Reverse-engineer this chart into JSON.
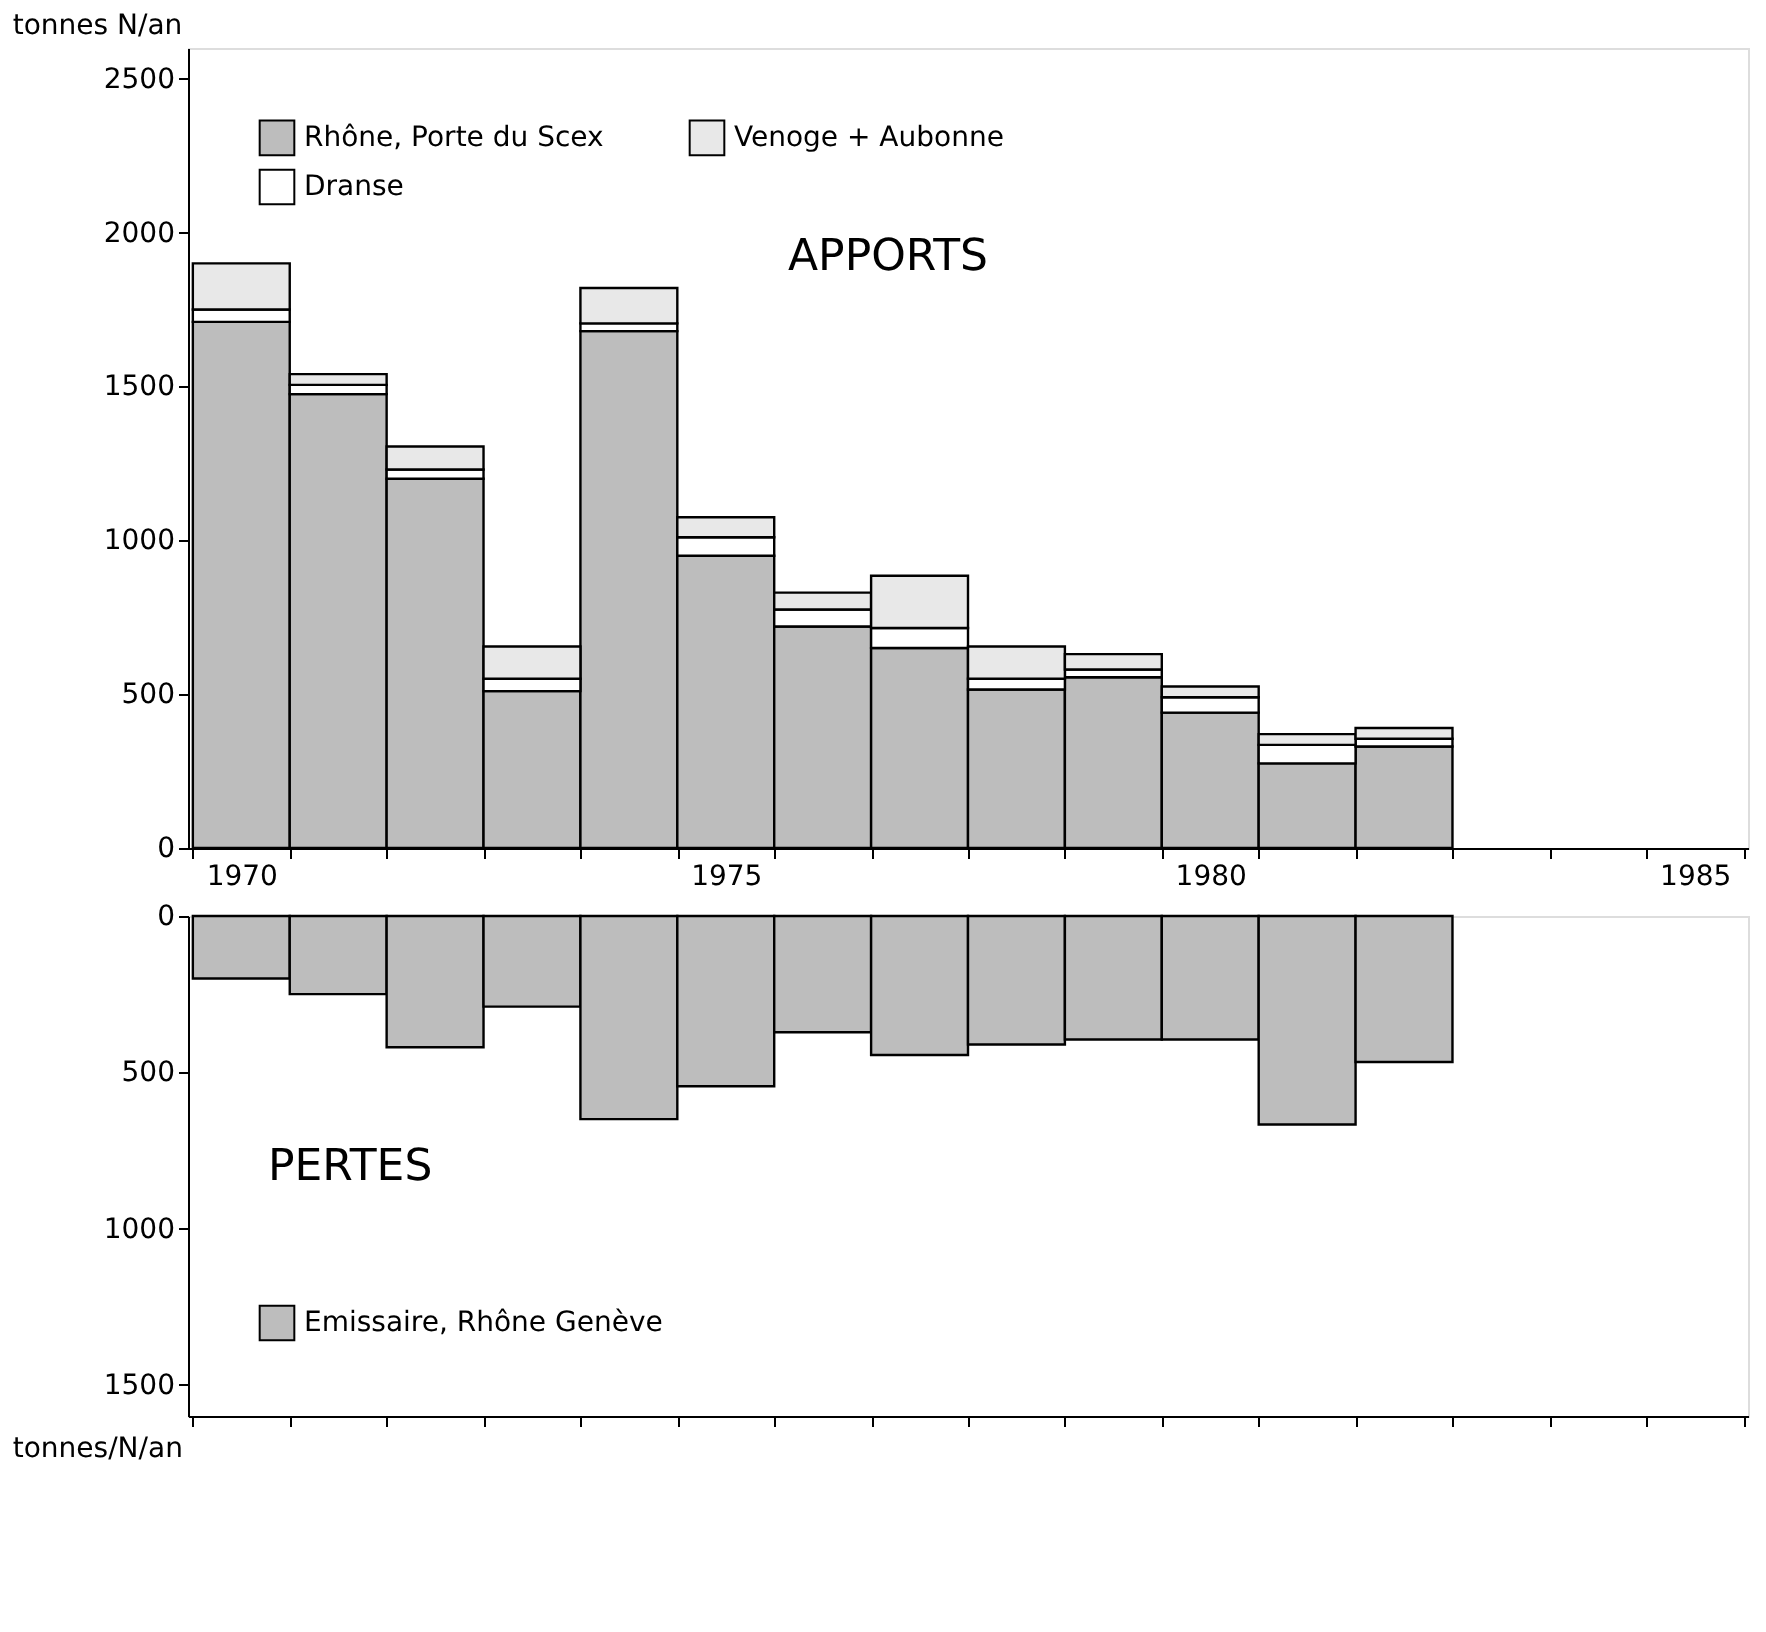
{
  "chart_data": [
    {
      "type": "bar",
      "stacked": true,
      "ylabel": "tonnes N/an",
      "categories": [
        "1970",
        null,
        null,
        null,
        null,
        "1975",
        null,
        null,
        null,
        null,
        "1980",
        null,
        null,
        null,
        null,
        "1985"
      ],
      "series": [
        {
          "name": "Rhône, Porte du Scex",
          "color": "#bdbdbd",
          "values": [
            1710,
            1475,
            1200,
            510,
            1680,
            950,
            720,
            650,
            515,
            555,
            440,
            275,
            330,
            null,
            null,
            null
          ]
        },
        {
          "name": "Dranse",
          "color": "#ffffff",
          "values": [
            40,
            30,
            30,
            40,
            25,
            60,
            55,
            65,
            35,
            25,
            50,
            60,
            25,
            null,
            null,
            null
          ]
        },
        {
          "name": "Venoge + Aubonne",
          "color": "#e8e8e8",
          "values": [
            150,
            35,
            75,
            105,
            115,
            65,
            55,
            170,
            105,
            50,
            35,
            35,
            35,
            null,
            null,
            null
          ]
        }
      ],
      "ylim": [
        0,
        2600
      ],
      "yticks": [
        0,
        500,
        1000,
        1500,
        2000,
        2500
      ],
      "annotations": [
        "APPORTS"
      ],
      "legend": "top left",
      "grid": false
    },
    {
      "type": "bar",
      "ylabel": "tonnes/N/an",
      "categories": [
        "1970",
        null,
        null,
        null,
        null,
        "1975",
        null,
        null,
        null,
        null,
        "1980",
        null,
        null,
        null,
        null,
        "1985"
      ],
      "series": [
        {
          "name": "Emissaire, Rhône Genève",
          "color": "#bdbdbd",
          "values": [
            200,
            250,
            420,
            290,
            650,
            545,
            372,
            445,
            411,
            395,
            395,
            667,
            467,
            null,
            null,
            null
          ]
        }
      ],
      "ylim": [
        1600,
        0
      ],
      "yticks": [
        0,
        500,
        1000,
        1500
      ],
      "annotations": [
        "PERTES"
      ],
      "legend": "bottom left",
      "tick_labels": "y",
      "grid": false
    }
  ]
}
